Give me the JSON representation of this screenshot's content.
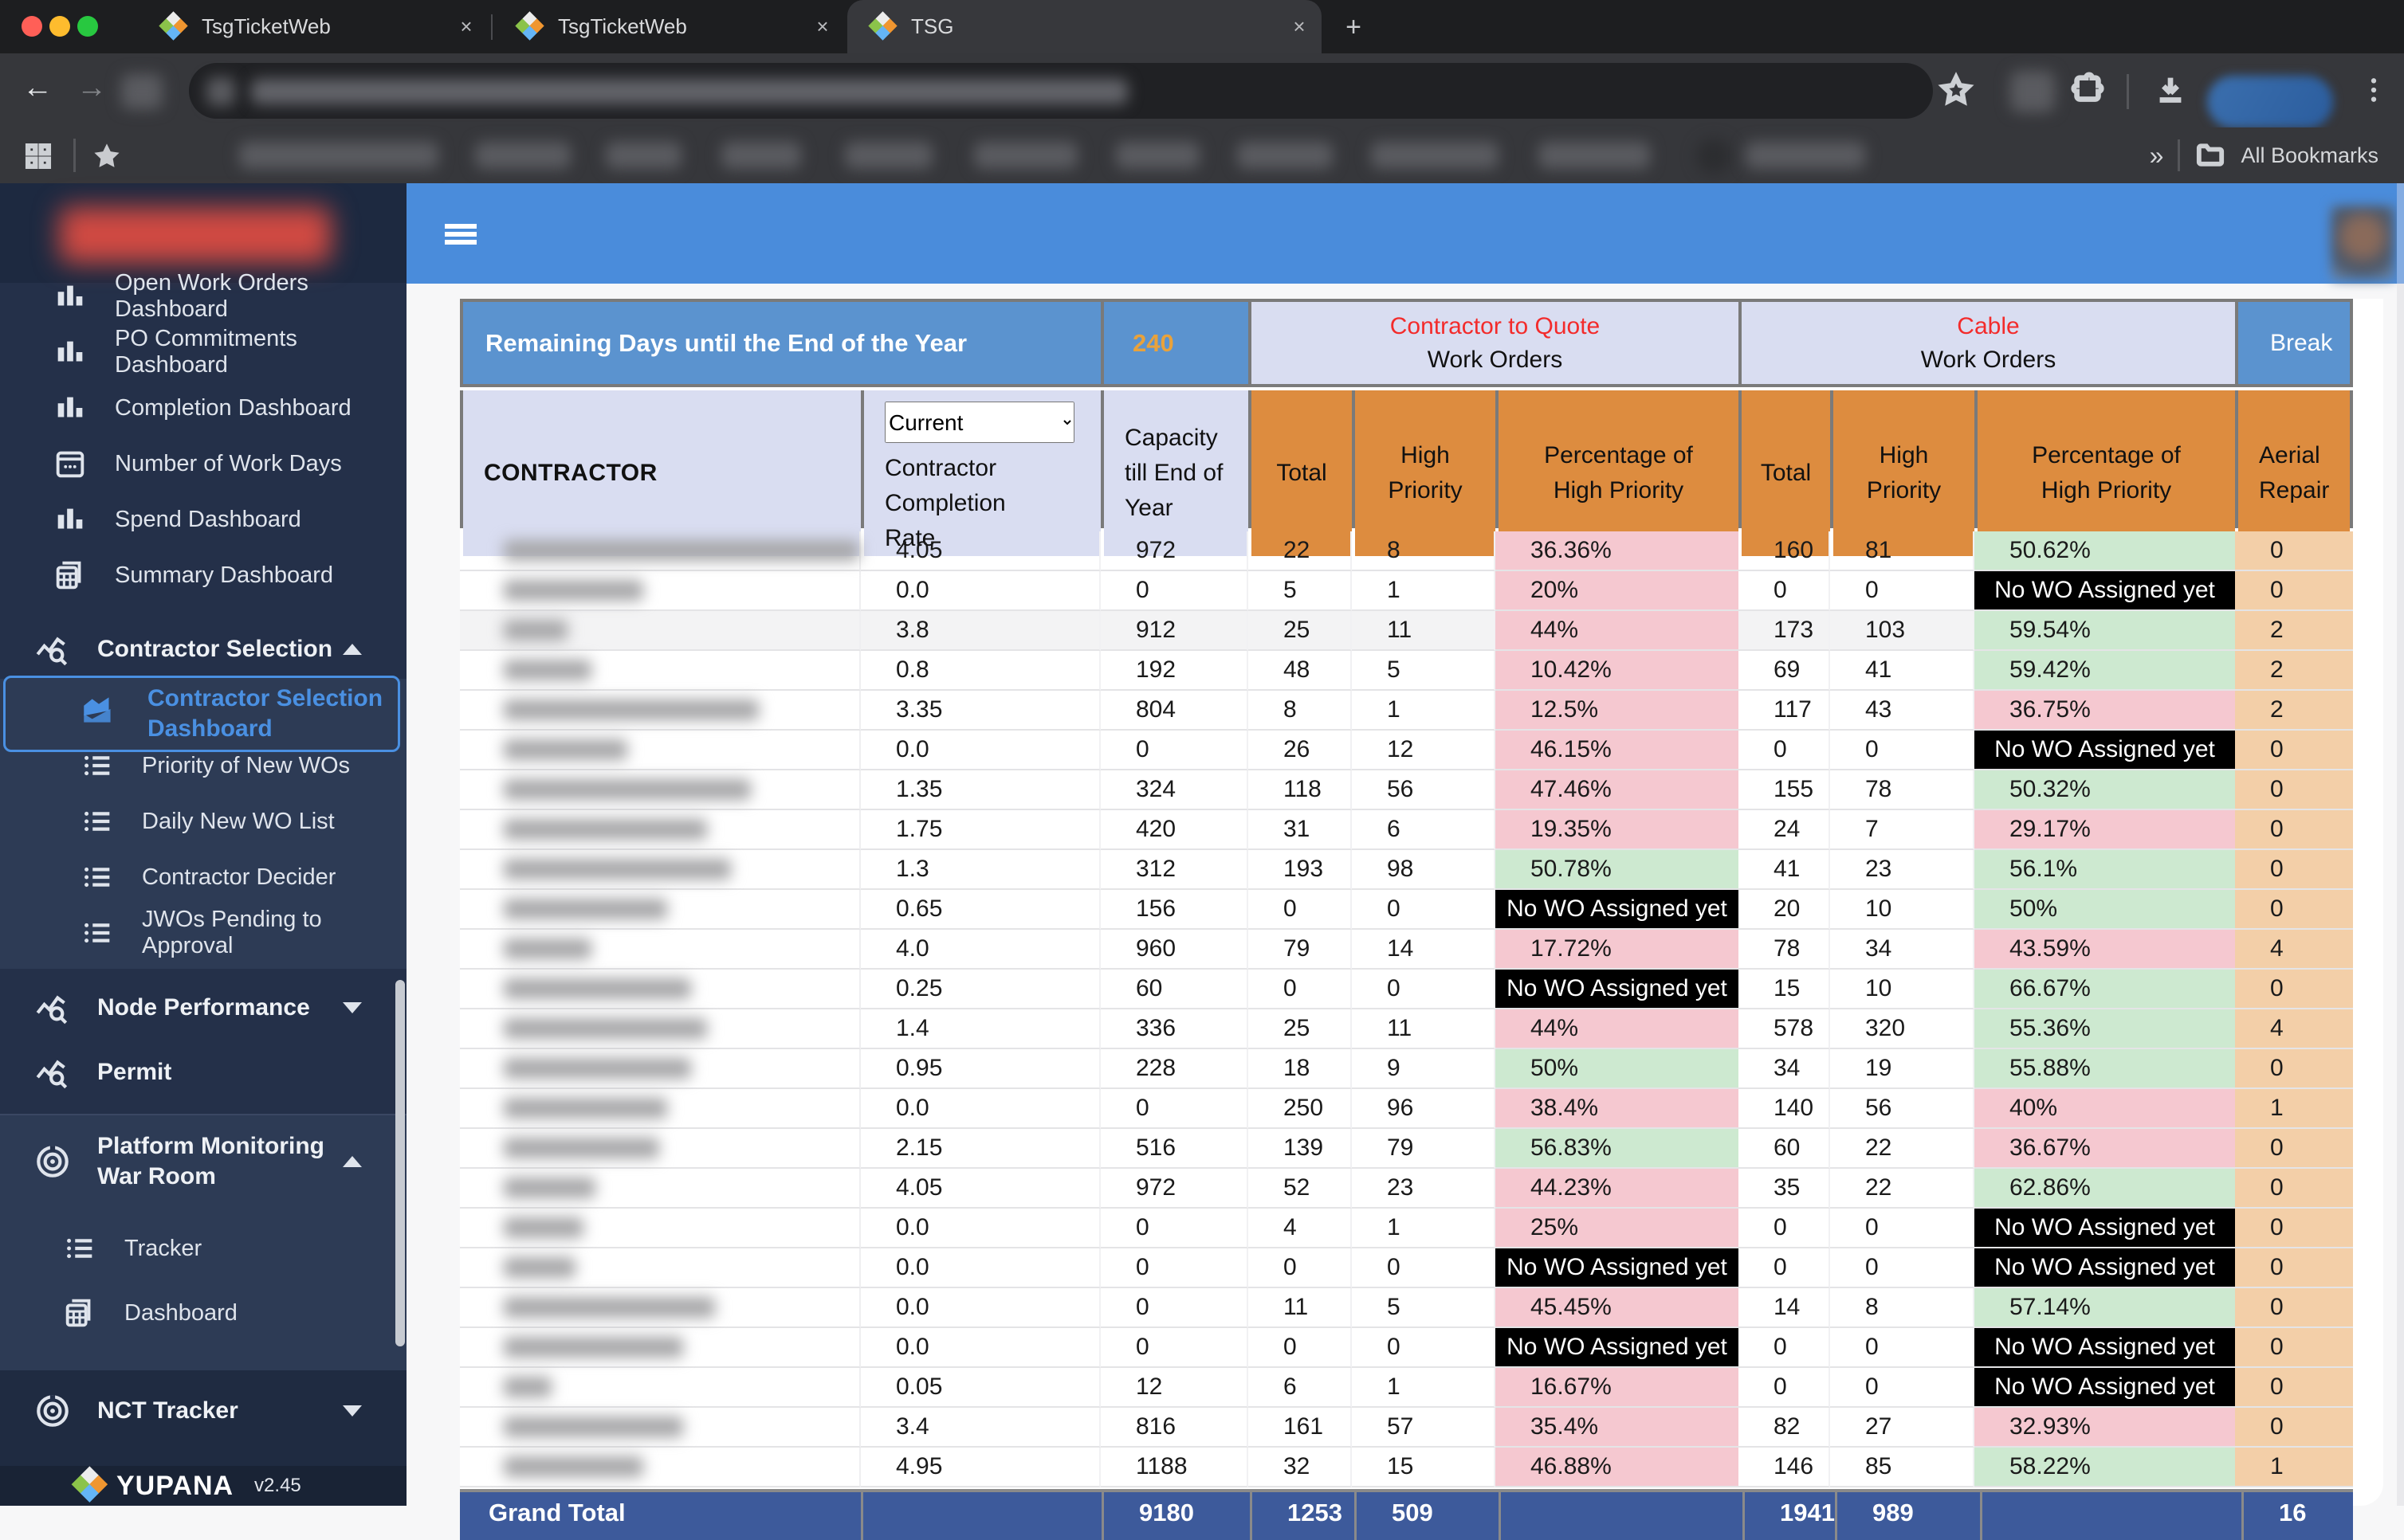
{
  "browser": {
    "tabs": [
      {
        "title": "TsgTicketWeb",
        "active": false
      },
      {
        "title": "TsgTicketWeb",
        "active": false
      },
      {
        "title": "TSG",
        "active": true
      }
    ],
    "new_tab_label": "+",
    "close_label": "×",
    "all_bookmarks_label": "All Bookmarks",
    "overflow_label": "»"
  },
  "sidebar": {
    "items_top": [
      {
        "icon": "bar-chart-icon",
        "label": "Open Work Orders Dashboard"
      },
      {
        "icon": "bar-chart-icon",
        "label": "PO Commitments Dashboard"
      },
      {
        "icon": "bar-chart-icon",
        "label": "Completion Dashboard"
      },
      {
        "icon": "calendar-icon",
        "label": "Number of Work Days"
      },
      {
        "icon": "bar-chart-icon",
        "label": "Spend Dashboard"
      },
      {
        "icon": "summary-icon",
        "label": "Summary Dashboard"
      }
    ],
    "contractor_selection": {
      "icon": "chart-search-icon",
      "label": "Contractor Selection",
      "chevron": "up"
    },
    "cs_active": {
      "icon": "area-chart-icon",
      "label": "Contractor Selection Dashboard"
    },
    "cs_items": [
      {
        "icon": "list-icon",
        "label": "Priority of New WOs"
      },
      {
        "icon": "list-icon",
        "label": "Daily New WO List"
      },
      {
        "icon": "list-icon",
        "label": "Contractor Decider"
      },
      {
        "icon": "list-icon",
        "label": "JWOs Pending to Approval"
      }
    ],
    "node_performance": {
      "icon": "chart-search-icon",
      "label": "Node Performance",
      "chevron": "down"
    },
    "permit": {
      "icon": "chart-search-icon",
      "label": "Permit"
    },
    "war_room": {
      "icon": "radar-icon",
      "label": "Platform Monitoring War Room",
      "chevron": "up"
    },
    "war_room_items": [
      {
        "icon": "list-icon",
        "label": "Tracker"
      },
      {
        "icon": "summary-icon",
        "label": "Dashboard"
      }
    ],
    "nct_tracker": {
      "icon": "radar-icon",
      "label": "NCT Tracker",
      "chevron": "down"
    },
    "brand": "YUPANA",
    "version": "v2.45"
  },
  "table": {
    "banner_label": "Remaining Days until the End of the Year",
    "banner_value": "240",
    "group_ctq_title": "Contractor to Quote",
    "group_ctq_sub": "Work Orders",
    "group_cable_title": "Cable",
    "group_cable_sub": "Work Orders",
    "group_break_title": "Break",
    "col_contractor": "CONTRACTOR",
    "col_completion_rate": "Contractor Completion Rate",
    "select_value": "Current",
    "col_capacity": "Capacity till End of Year",
    "col_total": "Total",
    "col_high_priority": "High Priority",
    "col_pct_high_priority": "Percentage of High Priority",
    "col_aerial_repair": "Aerial Repair",
    "no_wo_label": "No WO Assigned yet",
    "rows": [
      {
        "blur_w": 450,
        "rate": "4.05",
        "capacity": "972",
        "t1": "22",
        "h1": "8",
        "p1": "36.36%",
        "p1_bg": "pink",
        "t2": "160",
        "h2": "81",
        "p2": "50.62%",
        "p2_bg": "green",
        "aerial": "0",
        "highlight": false
      },
      {
        "blur_w": 175,
        "rate": "0.0",
        "capacity": "0",
        "t1": "5",
        "h1": "1",
        "p1": "20%",
        "p1_bg": "pink",
        "t2": "0",
        "h2": "0",
        "p2": "",
        "p2_bg": "black",
        "aerial": "0",
        "highlight": false
      },
      {
        "blur_w": 80,
        "rate": "3.8",
        "capacity": "912",
        "t1": "25",
        "h1": "11",
        "p1": "44%",
        "p1_bg": "pink",
        "t2": "173",
        "h2": "103",
        "p2": "59.54%",
        "p2_bg": "green",
        "aerial": "2",
        "highlight": true
      },
      {
        "blur_w": 110,
        "rate": "0.8",
        "capacity": "192",
        "t1": "48",
        "h1": "5",
        "p1": "10.42%",
        "p1_bg": "pink",
        "t2": "69",
        "h2": "41",
        "p2": "59.42%",
        "p2_bg": "green",
        "aerial": "2",
        "highlight": false
      },
      {
        "blur_w": 320,
        "rate": "3.35",
        "capacity": "804",
        "t1": "8",
        "h1": "1",
        "p1": "12.5%",
        "p1_bg": "pink",
        "t2": "117",
        "h2": "43",
        "p2": "36.75%",
        "p2_bg": "pink",
        "aerial": "2",
        "highlight": false
      },
      {
        "blur_w": 155,
        "rate": "0.0",
        "capacity": "0",
        "t1": "26",
        "h1": "12",
        "p1": "46.15%",
        "p1_bg": "pink",
        "t2": "0",
        "h2": "0",
        "p2": "",
        "p2_bg": "black",
        "aerial": "0",
        "highlight": false
      },
      {
        "blur_w": 310,
        "rate": "1.35",
        "capacity": "324",
        "t1": "118",
        "h1": "56",
        "p1": "47.46%",
        "p1_bg": "pink",
        "t2": "155",
        "h2": "78",
        "p2": "50.32%",
        "p2_bg": "green",
        "aerial": "0",
        "highlight": false
      },
      {
        "blur_w": 255,
        "rate": "1.75",
        "capacity": "420",
        "t1": "31",
        "h1": "6",
        "p1": "19.35%",
        "p1_bg": "pink",
        "t2": "24",
        "h2": "7",
        "p2": "29.17%",
        "p2_bg": "pink",
        "aerial": "0",
        "highlight": false
      },
      {
        "blur_w": 285,
        "rate": "1.3",
        "capacity": "312",
        "t1": "193",
        "h1": "98",
        "p1": "50.78%",
        "p1_bg": "green",
        "t2": "41",
        "h2": "23",
        "p2": "56.1%",
        "p2_bg": "green",
        "aerial": "0",
        "highlight": false
      },
      {
        "blur_w": 205,
        "rate": "0.65",
        "capacity": "156",
        "t1": "0",
        "h1": "0",
        "p1": "",
        "p1_bg": "black",
        "t2": "20",
        "h2": "10",
        "p2": "50%",
        "p2_bg": "green",
        "aerial": "0",
        "highlight": false
      },
      {
        "blur_w": 110,
        "rate": "4.0",
        "capacity": "960",
        "t1": "79",
        "h1": "14",
        "p1": "17.72%",
        "p1_bg": "pink",
        "t2": "78",
        "h2": "34",
        "p2": "43.59%",
        "p2_bg": "pink",
        "aerial": "4",
        "highlight": false
      },
      {
        "blur_w": 235,
        "rate": "0.25",
        "capacity": "60",
        "t1": "0",
        "h1": "0",
        "p1": "",
        "p1_bg": "black",
        "t2": "15",
        "h2": "10",
        "p2": "66.67%",
        "p2_bg": "green",
        "aerial": "0",
        "highlight": false
      },
      {
        "blur_w": 255,
        "rate": "1.4",
        "capacity": "336",
        "t1": "25",
        "h1": "11",
        "p1": "44%",
        "p1_bg": "pink",
        "t2": "578",
        "h2": "320",
        "p2": "55.36%",
        "p2_bg": "green",
        "aerial": "4",
        "highlight": false
      },
      {
        "blur_w": 235,
        "rate": "0.95",
        "capacity": "228",
        "t1": "18",
        "h1": "9",
        "p1": "50%",
        "p1_bg": "green",
        "t2": "34",
        "h2": "19",
        "p2": "55.88%",
        "p2_bg": "green",
        "aerial": "0",
        "highlight": false
      },
      {
        "blur_w": 205,
        "rate": "0.0",
        "capacity": "0",
        "t1": "250",
        "h1": "96",
        "p1": "38.4%",
        "p1_bg": "pink",
        "t2": "140",
        "h2": "56",
        "p2": "40%",
        "p2_bg": "pink",
        "aerial": "1",
        "highlight": false
      },
      {
        "blur_w": 195,
        "rate": "2.15",
        "capacity": "516",
        "t1": "139",
        "h1": "79",
        "p1": "56.83%",
        "p1_bg": "green",
        "t2": "60",
        "h2": "22",
        "p2": "36.67%",
        "p2_bg": "pink",
        "aerial": "0",
        "highlight": false
      },
      {
        "blur_w": 115,
        "rate": "4.05",
        "capacity": "972",
        "t1": "52",
        "h1": "23",
        "p1": "44.23%",
        "p1_bg": "pink",
        "t2": "35",
        "h2": "22",
        "p2": "62.86%",
        "p2_bg": "green",
        "aerial": "0",
        "highlight": false
      },
      {
        "blur_w": 100,
        "rate": "0.0",
        "capacity": "0",
        "t1": "4",
        "h1": "1",
        "p1": "25%",
        "p1_bg": "pink",
        "t2": "0",
        "h2": "0",
        "p2": "",
        "p2_bg": "black",
        "aerial": "0",
        "highlight": false
      },
      {
        "blur_w": 90,
        "rate": "0.0",
        "capacity": "0",
        "t1": "0",
        "h1": "0",
        "p1": "",
        "p1_bg": "black",
        "t2": "0",
        "h2": "0",
        "p2": "",
        "p2_bg": "black",
        "aerial": "0",
        "highlight": false
      },
      {
        "blur_w": 265,
        "rate": "0.0",
        "capacity": "0",
        "t1": "11",
        "h1": "5",
        "p1": "45.45%",
        "p1_bg": "pink",
        "t2": "14",
        "h2": "8",
        "p2": "57.14%",
        "p2_bg": "green",
        "aerial": "0",
        "highlight": false
      },
      {
        "blur_w": 225,
        "rate": "0.0",
        "capacity": "0",
        "t1": "0",
        "h1": "0",
        "p1": "",
        "p1_bg": "black",
        "t2": "0",
        "h2": "0",
        "p2": "",
        "p2_bg": "black",
        "aerial": "0",
        "highlight": false
      },
      {
        "blur_w": 60,
        "rate": "0.05",
        "capacity": "12",
        "t1": "6",
        "h1": "1",
        "p1": "16.67%",
        "p1_bg": "pink",
        "t2": "0",
        "h2": "0",
        "p2": "",
        "p2_bg": "black",
        "aerial": "0",
        "highlight": false
      },
      {
        "blur_w": 225,
        "rate": "3.4",
        "capacity": "816",
        "t1": "161",
        "h1": "57",
        "p1": "35.4%",
        "p1_bg": "pink",
        "t2": "82",
        "h2": "27",
        "p2": "32.93%",
        "p2_bg": "pink",
        "aerial": "0",
        "highlight": false
      },
      {
        "blur_w": 175,
        "rate": "4.95",
        "capacity": "1188",
        "t1": "32",
        "h1": "15",
        "p1": "46.88%",
        "p1_bg": "pink",
        "t2": "146",
        "h2": "85",
        "p2": "58.22%",
        "p2_bg": "green",
        "aerial": "1",
        "highlight": false
      }
    ],
    "grand_total": {
      "label": "Grand Total",
      "rate": "",
      "capacity": "9180",
      "t1": "1253",
      "h1": "509",
      "p1": "",
      "t2": "1941",
      "h2": "989",
      "p2": "",
      "aerial": "16"
    }
  }
}
